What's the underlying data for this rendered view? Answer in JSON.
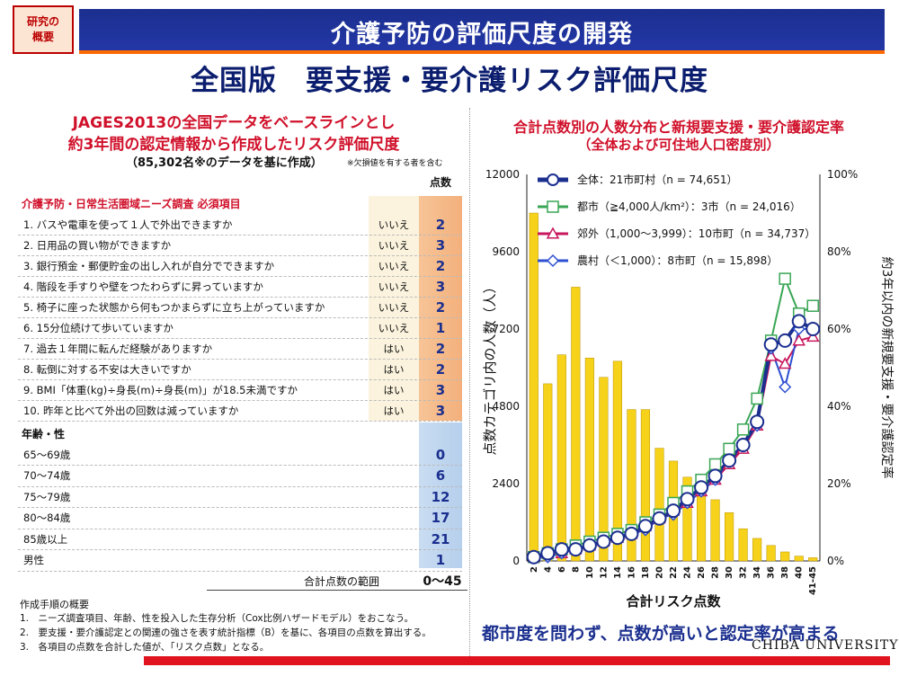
{
  "header": {
    "badge": [
      "研究の",
      "概要"
    ],
    "title": "介護予防の評価尺度の開発",
    "subtitle": "全国版　要支援・要介護リスク評価尺度"
  },
  "left": {
    "line1": "JAGES2013の全国データをベースラインとし",
    "line2": "約3年間の認定情報から作成したリスク評価尺度",
    "line3": "（85,302名※のデータを基に作成）",
    "line3_note": "※欠損値を有する者を含む",
    "points_header": "点数",
    "section1": "介護予防・日常生活圏域ニーズ調査 必須項目",
    "questions": [
      {
        "q": "1. バスや電車を使って１人で外出できますか",
        "a": "いいえ",
        "p": "2"
      },
      {
        "q": "2. 日用品の買い物ができますか",
        "a": "いいえ",
        "p": "3"
      },
      {
        "q": "3. 銀行預金・郵便貯金の出し入れが自分でできますか",
        "a": "いいえ",
        "p": "2"
      },
      {
        "q": "4. 階段を手すりや壁をつたわらずに昇っていますか",
        "a": "いいえ",
        "p": "3"
      },
      {
        "q": "5. 椅子に座った状態から何もつかまらずに立ち上がっていますか",
        "a": "いいえ",
        "p": "2"
      },
      {
        "q": "6. 15分位続けて歩いていますか",
        "a": "いいえ",
        "p": "1"
      },
      {
        "q": "7. 過去１年間に転んだ経験がありますか",
        "a": "はい",
        "p": "2"
      },
      {
        "q": "8. 転倒に対する不安は大きいですか",
        "a": "はい",
        "p": "2"
      },
      {
        "q": "9. BMI「体重(kg)÷身長(m)÷身長(m)」が18.5未満ですか",
        "a": "はい",
        "p": "3"
      },
      {
        "q": "10. 昨年と比べて外出の回数は減っていますか",
        "a": "はい",
        "p": "3"
      }
    ],
    "section2": "年齢・性",
    "demographics": [
      {
        "q": "65～69歳",
        "p": "0"
      },
      {
        "q": "70～74歳",
        "p": "6"
      },
      {
        "q": "75～79歳",
        "p": "12"
      },
      {
        "q": "80～84歳",
        "p": "17"
      },
      {
        "q": "85歳以上",
        "p": "21"
      },
      {
        "q": "男性",
        "p": "1"
      }
    ],
    "range_label": "合計点数の範囲",
    "range_value": "0～45",
    "notes_title": "作成手順の概要",
    "notes": [
      "1.　ニーズ調査項目、年齢、性を投入した生存分析（Cox比例ハザードモデル）をおこなう。",
      "2.　要支援・要介護認定との関連の強さを表す統計指標（B）を基に、各項目の点数を算出する。",
      "3.　各項目の点数を合計した値が、「リスク点数」となる。"
    ]
  },
  "right": {
    "title1": "合計点数別の人数分布と新規要支援・要介護認定率",
    "title2": "（全体および可住地人口密度別）",
    "conclusion": "都市度を問わず、点数が高いと認定率が高まる",
    "university": "CHIBA UNIVERSITY"
  },
  "colors": {
    "navy": "#1b2f8f",
    "red": "#d0102a",
    "bar": "#f7d21a",
    "green": "#3aa655",
    "pink": "#c8175d",
    "blue": "#2d4fd1"
  },
  "chart_data": {
    "type": "bar+line",
    "xlabel": "合計リスク点数",
    "ylabel_left": "点数カテゴリ内の人数（人）",
    "ylabel_right": "約3年以内の新規要支援・要介護認定率",
    "ylim_left": [
      0,
      12000
    ],
    "yticks_left": [
      "0",
      "2400",
      "4800",
      "7200",
      "9600",
      "12000"
    ],
    "ylim_right": [
      0,
      100
    ],
    "yticks_right": [
      "0%",
      "20%",
      "40%",
      "60%",
      "80%",
      "100%"
    ],
    "categories": [
      "2",
      "4",
      "6",
      "8",
      "10",
      "12",
      "14",
      "16",
      "18",
      "20",
      "22",
      "24",
      "26",
      "28",
      "30",
      "32",
      "34",
      "36",
      "38",
      "40",
      "41-45"
    ],
    "x_tick_labels": [
      "2",
      "4",
      "6",
      "8",
      "10",
      "12",
      "14",
      "16",
      "18",
      "20",
      "22",
      "24",
      "26",
      "28",
      "30",
      "32",
      "34",
      "36",
      "38",
      "40",
      "41-45"
    ],
    "bars": [
      10800,
      5500,
      6400,
      8500,
      6300,
      5700,
      6200,
      4700,
      4700,
      3500,
      3100,
      2600,
      2300,
      1900,
      1500,
      1000,
      700,
      480,
      280,
      150,
      100
    ],
    "series": [
      {
        "name": "全体：21市町村（n = 74,651）",
        "values": [
          1,
          2,
          3,
          3,
          4,
          5,
          6,
          7,
          9,
          11,
          13,
          16,
          19,
          22,
          26,
          30,
          36,
          56,
          57,
          62,
          60
        ]
      },
      {
        "name": "都市（≧4,000人/km²）：3市（n = 24,016）",
        "values": [
          1,
          2,
          3,
          4,
          5,
          6,
          7,
          8,
          10,
          12,
          15,
          18,
          21,
          25,
          29,
          34,
          42,
          57,
          73,
          64,
          66
        ]
      },
      {
        "name": "郊外（1,000～3,999）：10市町（n = 34,737）",
        "values": [
          1,
          2,
          2,
          3,
          4,
          5,
          6,
          7,
          9,
          11,
          13,
          15,
          18,
          21,
          25,
          29,
          35,
          53,
          51,
          57,
          58
        ]
      },
      {
        "name": "農村（＜1,000）：8市町（n = 15,898）",
        "values": [
          1,
          1,
          2,
          3,
          4,
          5,
          6,
          7,
          8,
          11,
          12,
          15,
          18,
          21,
          26,
          30,
          35,
          55,
          45,
          60,
          60
        ]
      }
    ],
    "legend": "top"
  }
}
